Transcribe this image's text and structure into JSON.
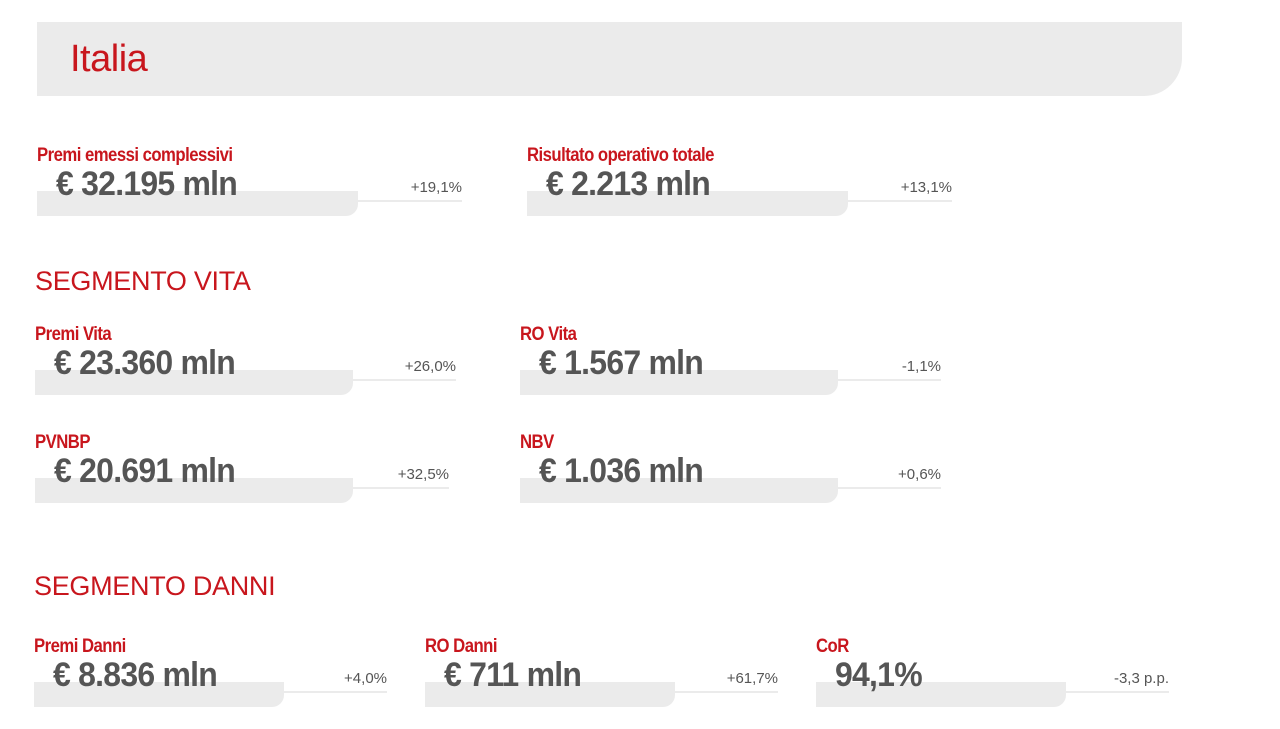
{
  "header": {
    "title": "Italia"
  },
  "overall": [
    {
      "label": "Premi emessi complessivi",
      "value": "€ 32.195 mln",
      "delta": "+19,1%"
    },
    {
      "label": "Risultato operativo totale",
      "value": "€ 2.213 mln",
      "delta": "+13,1%"
    }
  ],
  "vita": {
    "title": "SEGMENTO VITA",
    "metrics": [
      {
        "label": "Premi Vita",
        "value": "€ 23.360 mln",
        "delta": "+26,0%"
      },
      {
        "label": "RO Vita",
        "value": "€ 1.567 mln",
        "delta": "-1,1%"
      },
      {
        "label": "PVNBP",
        "value": "€ 20.691 mln",
        "delta": "+32,5%"
      },
      {
        "label": "NBV",
        "value": "€ 1.036 mln",
        "delta": "+0,6%"
      }
    ]
  },
  "danni": {
    "title": "SEGMENTO DANNI",
    "metrics": [
      {
        "label": "Premi Danni",
        "value": "€ 8.836 mln",
        "delta": "+4,0%"
      },
      {
        "label": "RO Danni",
        "value": "€ 711 mln",
        "delta": "+61,7%"
      },
      {
        "label": "CoR",
        "value": "94,1%",
        "delta": "-3,3 p.p."
      }
    ]
  },
  "colors": {
    "accent": "#c8161d",
    "bar": "#ebebeb",
    "text": "#555555"
  }
}
